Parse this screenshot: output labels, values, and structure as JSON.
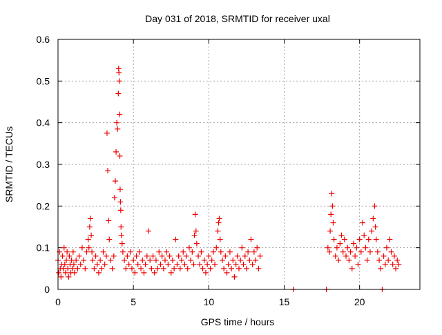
{
  "chart_data": {
    "type": "scatter",
    "title": "Day 031 of 2018, SRMTID for receiver uxal",
    "xlabel": "GPS time / hours",
    "ylabel": "SRMTID / TECUs",
    "xlim": [
      0,
      24
    ],
    "ylim": [
      0,
      0.6
    ],
    "xticks": [
      0,
      5,
      10,
      15,
      20
    ],
    "xtick_labels": [
      "0",
      "5",
      "10",
      "15",
      "20"
    ],
    "yticks": [
      0,
      0.1,
      0.2,
      0.3,
      0.4,
      0.5,
      0.6
    ],
    "ytick_labels": [
      "0",
      "0.1",
      "0.2",
      "0.3",
      "0.4",
      "0.5",
      "0.6"
    ],
    "grid": true,
    "marker": "plus",
    "colors": {
      "series": "#ee0000",
      "grid": "#a0a0a0",
      "axis": "#000000"
    },
    "series": [
      {
        "name": "SRMTID",
        "points": [
          [
            0.0,
            0.07
          ],
          [
            0.05,
            0.04
          ],
          [
            0.1,
            0.09
          ],
          [
            0.15,
            0.05
          ],
          [
            0.2,
            0.03
          ],
          [
            0.25,
            0.06
          ],
          [
            0.3,
            0.08
          ],
          [
            0.35,
            0.05
          ],
          [
            0.4,
            0.1
          ],
          [
            0.45,
            0.06
          ],
          [
            0.5,
            0.04
          ],
          [
            0.55,
            0.07
          ],
          [
            0.6,
            0.09
          ],
          [
            0.65,
            0.05
          ],
          [
            0.7,
            0.03
          ],
          [
            0.75,
            0.08
          ],
          [
            0.8,
            0.06
          ],
          [
            0.85,
            0.04
          ],
          [
            0.9,
            0.07
          ],
          [
            0.95,
            0.05
          ],
          [
            1.0,
            0.09
          ],
          [
            1.05,
            0.06
          ],
          [
            1.1,
            0.04
          ],
          [
            1.2,
            0.07
          ],
          [
            1.3,
            0.05
          ],
          [
            1.4,
            0.08
          ],
          [
            1.5,
            0.06
          ],
          [
            1.6,
            0.1
          ],
          [
            1.7,
            0.07
          ],
          [
            1.8,
            0.05
          ],
          [
            1.9,
            0.09
          ],
          [
            2.0,
            0.12
          ],
          [
            2.05,
            0.1
          ],
          [
            2.1,
            0.15
          ],
          [
            2.15,
            0.17
          ],
          [
            2.2,
            0.13
          ],
          [
            2.25,
            0.09
          ],
          [
            2.3,
            0.07
          ],
          [
            2.4,
            0.05
          ],
          [
            2.5,
            0.08
          ],
          [
            2.6,
            0.06
          ],
          [
            2.7,
            0.04
          ],
          [
            2.8,
            0.07
          ],
          [
            2.9,
            0.05
          ],
          [
            3.0,
            0.09
          ],
          [
            3.1,
            0.06
          ],
          [
            3.2,
            0.08
          ],
          [
            3.25,
            0.375
          ],
          [
            3.3,
            0.285
          ],
          [
            3.35,
            0.165
          ],
          [
            3.4,
            0.12
          ],
          [
            3.5,
            0.07
          ],
          [
            3.6,
            0.05
          ],
          [
            3.7,
            0.08
          ],
          [
            3.75,
            0.22
          ],
          [
            3.8,
            0.26
          ],
          [
            3.85,
            0.33
          ],
          [
            3.9,
            0.4
          ],
          [
            3.95,
            0.385
          ],
          [
            4.0,
            0.47
          ],
          [
            4.02,
            0.53
          ],
          [
            4.04,
            0.52
          ],
          [
            4.06,
            0.5
          ],
          [
            4.08,
            0.42
          ],
          [
            4.1,
            0.32
          ],
          [
            4.12,
            0.24
          ],
          [
            4.14,
            0.21
          ],
          [
            4.16,
            0.19
          ],
          [
            4.18,
            0.15
          ],
          [
            4.2,
            0.13
          ],
          [
            4.25,
            0.11
          ],
          [
            4.3,
            0.09
          ],
          [
            4.4,
            0.07
          ],
          [
            4.5,
            0.05
          ],
          [
            4.6,
            0.08
          ],
          [
            4.7,
            0.06
          ],
          [
            4.8,
            0.09
          ],
          [
            4.9,
            0.05
          ],
          [
            5.0,
            0.07
          ],
          [
            5.1,
            0.04
          ],
          [
            5.2,
            0.08
          ],
          [
            5.3,
            0.06
          ],
          [
            5.4,
            0.09
          ],
          [
            5.5,
            0.05
          ],
          [
            5.6,
            0.07
          ],
          [
            5.7,
            0.04
          ],
          [
            5.8,
            0.06
          ],
          [
            5.9,
            0.08
          ],
          [
            6.0,
            0.14
          ],
          [
            6.1,
            0.07
          ],
          [
            6.2,
            0.05
          ],
          [
            6.3,
            0.08
          ],
          [
            6.4,
            0.04
          ],
          [
            6.5,
            0.07
          ],
          [
            6.6,
            0.05
          ],
          [
            6.7,
            0.09
          ],
          [
            6.8,
            0.06
          ],
          [
            6.9,
            0.08
          ],
          [
            7.0,
            0.05
          ],
          [
            7.1,
            0.07
          ],
          [
            7.2,
            0.09
          ],
          [
            7.3,
            0.06
          ],
          [
            7.4,
            0.08
          ],
          [
            7.5,
            0.04
          ],
          [
            7.6,
            0.07
          ],
          [
            7.7,
            0.05
          ],
          [
            7.8,
            0.12
          ],
          [
            7.9,
            0.06
          ],
          [
            8.0,
            0.08
          ],
          [
            8.1,
            0.05
          ],
          [
            8.2,
            0.07
          ],
          [
            8.3,
            0.09
          ],
          [
            8.4,
            0.06
          ],
          [
            8.5,
            0.08
          ],
          [
            8.6,
            0.05
          ],
          [
            8.7,
            0.1
          ],
          [
            8.8,
            0.07
          ],
          [
            8.9,
            0.09
          ],
          [
            9.0,
            0.06
          ],
          [
            9.05,
            0.13
          ],
          [
            9.1,
            0.18
          ],
          [
            9.15,
            0.14
          ],
          [
            9.2,
            0.11
          ],
          [
            9.3,
            0.08
          ],
          [
            9.4,
            0.06
          ],
          [
            9.5,
            0.09
          ],
          [
            9.6,
            0.05
          ],
          [
            9.7,
            0.07
          ],
          [
            9.8,
            0.04
          ],
          [
            9.9,
            0.06
          ],
          [
            10.0,
            0.08
          ],
          [
            10.1,
            0.05
          ],
          [
            10.2,
            0.07
          ],
          [
            10.3,
            0.09
          ],
          [
            10.4,
            0.06
          ],
          [
            10.5,
            0.1
          ],
          [
            10.6,
            0.14
          ],
          [
            10.65,
            0.16
          ],
          [
            10.7,
            0.17
          ],
          [
            10.75,
            0.12
          ],
          [
            10.8,
            0.09
          ],
          [
            10.9,
            0.07
          ],
          [
            11.0,
            0.05
          ],
          [
            11.1,
            0.08
          ],
          [
            11.2,
            0.04
          ],
          [
            11.3,
            0.06
          ],
          [
            11.4,
            0.09
          ],
          [
            11.5,
            0.05
          ],
          [
            11.6,
            0.07
          ],
          [
            11.7,
            0.03
          ],
          [
            11.8,
            0.06
          ],
          [
            11.9,
            0.08
          ],
          [
            12.0,
            0.05
          ],
          [
            12.1,
            0.07
          ],
          [
            12.2,
            0.1
          ],
          [
            12.3,
            0.06
          ],
          [
            12.4,
            0.08
          ],
          [
            12.5,
            0.05
          ],
          [
            12.6,
            0.09
          ],
          [
            12.7,
            0.07
          ],
          [
            12.8,
            0.12
          ],
          [
            12.9,
            0.06
          ],
          [
            13.0,
            0.09
          ],
          [
            13.1,
            0.07
          ],
          [
            13.2,
            0.1
          ],
          [
            13.3,
            0.05
          ],
          [
            13.4,
            0.08
          ],
          [
            15.6,
            0.0
          ],
          [
            17.8,
            0.0
          ],
          [
            17.9,
            0.1
          ],
          [
            18.0,
            0.09
          ],
          [
            18.05,
            0.14
          ],
          [
            18.1,
            0.18
          ],
          [
            18.15,
            0.23
          ],
          [
            18.2,
            0.2
          ],
          [
            18.25,
            0.16
          ],
          [
            18.3,
            0.12
          ],
          [
            18.4,
            0.08
          ],
          [
            18.5,
            0.1
          ],
          [
            18.6,
            0.07
          ],
          [
            18.7,
            0.11
          ],
          [
            18.8,
            0.13
          ],
          [
            18.9,
            0.09
          ],
          [
            19.0,
            0.12
          ],
          [
            19.1,
            0.08
          ],
          [
            19.2,
            0.1
          ],
          [
            19.3,
            0.07
          ],
          [
            19.4,
            0.09
          ],
          [
            19.5,
            0.05
          ],
          [
            19.6,
            0.11
          ],
          [
            19.7,
            0.08
          ],
          [
            19.8,
            0.1
          ],
          [
            19.9,
            0.06
          ],
          [
            20.0,
            0.12
          ],
          [
            20.1,
            0.09
          ],
          [
            20.2,
            0.16
          ],
          [
            20.3,
            0.13
          ],
          [
            20.4,
            0.1
          ],
          [
            20.5,
            0.07
          ],
          [
            20.6,
            0.12
          ],
          [
            20.7,
            0.09
          ],
          [
            20.8,
            0.14
          ],
          [
            20.9,
            0.17
          ],
          [
            21.0,
            0.2
          ],
          [
            21.05,
            0.15
          ],
          [
            21.1,
            0.12
          ],
          [
            21.2,
            0.09
          ],
          [
            21.3,
            0.07
          ],
          [
            21.4,
            0.05
          ],
          [
            21.5,
            0.0
          ],
          [
            21.6,
            0.08
          ],
          [
            21.7,
            0.06
          ],
          [
            21.8,
            0.1
          ],
          [
            21.9,
            0.07
          ],
          [
            22.0,
            0.12
          ],
          [
            22.1,
            0.09
          ],
          [
            22.2,
            0.06
          ],
          [
            22.3,
            0.08
          ],
          [
            22.4,
            0.05
          ],
          [
            22.5,
            0.07
          ],
          [
            22.6,
            0.06
          ]
        ]
      }
    ]
  }
}
